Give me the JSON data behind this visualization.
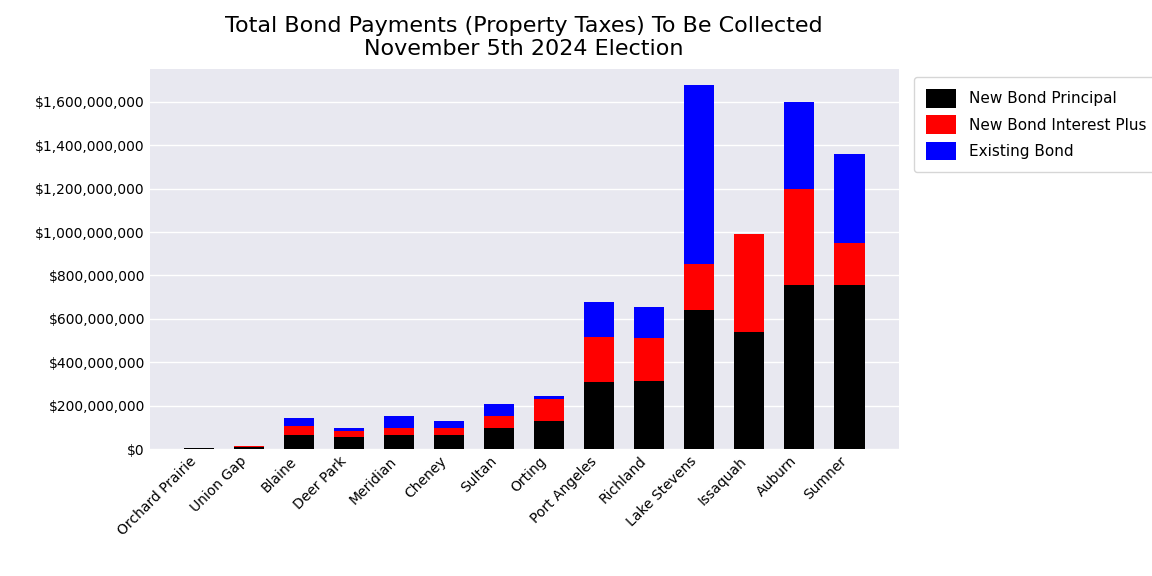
{
  "title": "Total Bond Payments (Property Taxes) To Be Collected\nNovember 5th 2024 Election",
  "categories": [
    "Orchard Prairie",
    "Union Gap",
    "Blaine",
    "Deer Park",
    "Meridian",
    "Cheney",
    "Sultan",
    "Orting",
    "Port Angeles",
    "Richland",
    "Lake Stevens",
    "Issaquah",
    "Auburn",
    "Sumner"
  ],
  "principal": [
    5000000,
    10000000,
    65000000,
    55000000,
    65000000,
    65000000,
    100000000,
    130000000,
    310000000,
    315000000,
    640000000,
    540000000,
    755000000,
    755000000
  ],
  "interest": [
    3000000,
    5000000,
    40000000,
    30000000,
    35000000,
    35000000,
    55000000,
    100000000,
    205000000,
    195000000,
    215000000,
    450000000,
    445000000,
    195000000
  ],
  "existing": [
    0,
    0,
    40000000,
    15000000,
    55000000,
    30000000,
    55000000,
    15000000,
    165000000,
    145000000,
    820000000,
    0,
    400000000,
    410000000
  ],
  "colors": {
    "principal": "#000000",
    "interest": "#ff0000",
    "existing": "#0000ff"
  },
  "legend_labels": [
    "New Bond Principal",
    "New Bond Interest Plus Fees",
    "Existing Bond"
  ],
  "ylim": [
    0,
    1750000000
  ],
  "background_color": "#e8e8f0",
  "fig_background": "#ffffff",
  "title_fontsize": 16,
  "tick_fontsize": 10,
  "legend_fontsize": 11
}
